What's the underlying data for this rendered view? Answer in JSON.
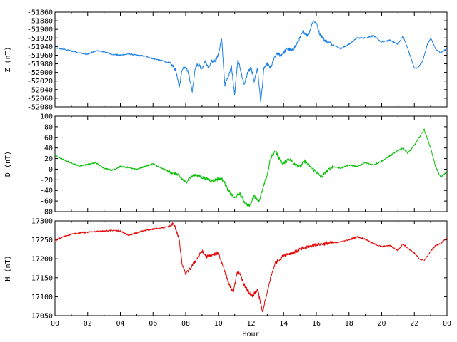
{
  "chart_data": [
    {
      "type": "line",
      "ylabel": "Z (nT)",
      "ylim": [
        -52080,
        -51860
      ],
      "yticks": [
        -51860,
        -51880,
        -51900,
        -51920,
        -51940,
        -51960,
        -51980,
        -52000,
        -52020,
        -52040,
        -52060,
        -52080
      ],
      "color": "#1a7fe6",
      "series": [
        {
          "x": [
            0,
            0.5,
            1,
            1.5,
            2,
            2.5,
            3,
            3.5,
            4,
            4.5,
            5,
            5.5,
            6,
            6.5,
            7,
            7.2,
            7.4,
            7.6,
            7.8,
            8,
            8.2,
            8.4,
            8.6,
            8.8,
            9,
            9.2,
            9.4,
            9.6,
            9.8,
            10,
            10.2,
            10.4,
            10.6,
            10.8,
            11,
            11.2,
            11.4,
            11.6,
            11.8,
            12,
            12.2,
            12.4,
            12.6,
            12.8,
            13,
            13.2,
            13.4,
            13.6,
            13.8,
            14,
            14.2,
            14.5,
            14.8,
            15,
            15.2,
            15.5,
            15.8,
            16,
            16.2,
            16.5,
            17,
            17.5,
            18,
            18.5,
            19,
            19.5,
            20,
            20.5,
            21,
            21.3,
            21.6,
            22,
            22.2,
            22.5,
            22.8,
            23,
            23.3,
            23.6,
            24
          ],
          "y": [
            -51943,
            -51946,
            -51950,
            -51955,
            -51958,
            -51950,
            -51952,
            -51958,
            -51960,
            -51957,
            -51960,
            -51962,
            -51968,
            -51972,
            -51978,
            -51985,
            -51995,
            -52035,
            -51990,
            -51985,
            -52005,
            -52045,
            -51985,
            -51982,
            -51992,
            -51975,
            -51990,
            -51975,
            -51972,
            -51960,
            -51920,
            -52030,
            -52010,
            -51985,
            -52050,
            -51970,
            -52000,
            -52030,
            -52000,
            -51990,
            -52020,
            -51990,
            -52070,
            -51990,
            -51980,
            -51990,
            -51970,
            -51955,
            -51960,
            -51955,
            -51945,
            -51950,
            -51935,
            -51920,
            -51905,
            -51915,
            -51880,
            -51885,
            -51910,
            -51925,
            -51935,
            -51945,
            -51935,
            -51920,
            -51920,
            -51915,
            -51930,
            -51925,
            -51935,
            -51915,
            -51945,
            -51990,
            -51990,
            -51975,
            -51935,
            -51920,
            -51945,
            -51955,
            -51945
          ]
        }
      ]
    },
    {
      "type": "line",
      "ylabel": "D (nT)",
      "ylim": [
        -80,
        100
      ],
      "yticks": [
        100,
        80,
        60,
        40,
        20,
        0,
        -20,
        -40,
        -60,
        -80
      ],
      "color": "#00c000",
      "series": [
        {
          "x": [
            0,
            0.5,
            1,
            1.5,
            2,
            2.5,
            3,
            3.5,
            4,
            4.5,
            5,
            5.5,
            6,
            6.5,
            7,
            7.5,
            8,
            8.3,
            8.6,
            9,
            9.3,
            9.6,
            10,
            10.3,
            10.6,
            11,
            11.3,
            11.6,
            11.9,
            12.2,
            12.5,
            12.8,
            13,
            13.2,
            13.5,
            13.8,
            14,
            14.3,
            14.6,
            15,
            15.3,
            15.6,
            16,
            16.3,
            16.6,
            17,
            17.5,
            18,
            18.5,
            19,
            19.5,
            20,
            20.5,
            21,
            21.3,
            21.6,
            22,
            22.3,
            22.6,
            23,
            23.3,
            23.6,
            24
          ],
          "y": [
            26,
            18,
            12,
            6,
            9,
            12,
            2,
            -2,
            5,
            3,
            0,
            5,
            10,
            2,
            -5,
            -10,
            -25,
            -15,
            -10,
            -15,
            -18,
            -22,
            -18,
            -20,
            -40,
            -55,
            -45,
            -62,
            -70,
            -50,
            -60,
            -30,
            -10,
            20,
            35,
            15,
            10,
            20,
            12,
            5,
            15,
            5,
            -5,
            -15,
            -5,
            5,
            2,
            8,
            5,
            12,
            8,
            15,
            25,
            35,
            40,
            30,
            45,
            60,
            75,
            40,
            5,
            -15,
            -5
          ]
        }
      ]
    },
    {
      "type": "line",
      "xlabel": "Hour",
      "ylabel": "H (nT)",
      "ylim": [
        17050,
        17300
      ],
      "yticks": [
        17300,
        17250,
        17200,
        17150,
        17100,
        17050
      ],
      "color": "#e60000",
      "series": [
        {
          "x": [
            0,
            0.5,
            1,
            1.5,
            2,
            2.5,
            3,
            3.5,
            4,
            4.5,
            5,
            5.5,
            6,
            6.5,
            7,
            7.2,
            7.4,
            7.6,
            7.8,
            8,
            8.3,
            8.6,
            9,
            9.3,
            9.6,
            10,
            10.3,
            10.6,
            10.9,
            11.2,
            11.5,
            11.8,
            12.1,
            12.4,
            12.7,
            13,
            13.2,
            13.5,
            13.8,
            14,
            14.5,
            15,
            15.5,
            16,
            16.5,
            17,
            17.5,
            18,
            18.5,
            19,
            19.5,
            20,
            20.5,
            21,
            21.3,
            21.6,
            22,
            22.3,
            22.6,
            23,
            23.3,
            23.6,
            24
          ],
          "y": [
            17248,
            17258,
            17265,
            17268,
            17270,
            17272,
            17273,
            17275,
            17273,
            17262,
            17268,
            17275,
            17278,
            17282,
            17285,
            17292,
            17280,
            17250,
            17180,
            17160,
            17175,
            17195,
            17220,
            17205,
            17210,
            17215,
            17180,
            17140,
            17110,
            17170,
            17140,
            17115,
            17100,
            17120,
            17060,
            17110,
            17150,
            17190,
            17200,
            17210,
            17215,
            17225,
            17232,
            17238,
            17240,
            17242,
            17245,
            17250,
            17258,
            17252,
            17240,
            17232,
            17235,
            17222,
            17240,
            17228,
            17215,
            17200,
            17195,
            17220,
            17235,
            17240,
            17255
          ]
        }
      ]
    }
  ],
  "x_axis": {
    "xlim": [
      0,
      24
    ],
    "major_ticks": [
      0,
      2,
      4,
      6,
      8,
      10,
      12,
      14,
      16,
      18,
      20,
      22,
      24
    ],
    "major_labels": [
      "00",
      "02",
      "04",
      "06",
      "08",
      "10",
      "12",
      "14",
      "16",
      "18",
      "20",
      "22",
      "00"
    ],
    "minor_ticks": [
      1,
      3,
      5,
      7,
      9,
      11,
      13,
      15,
      17,
      19,
      21,
      23
    ]
  }
}
